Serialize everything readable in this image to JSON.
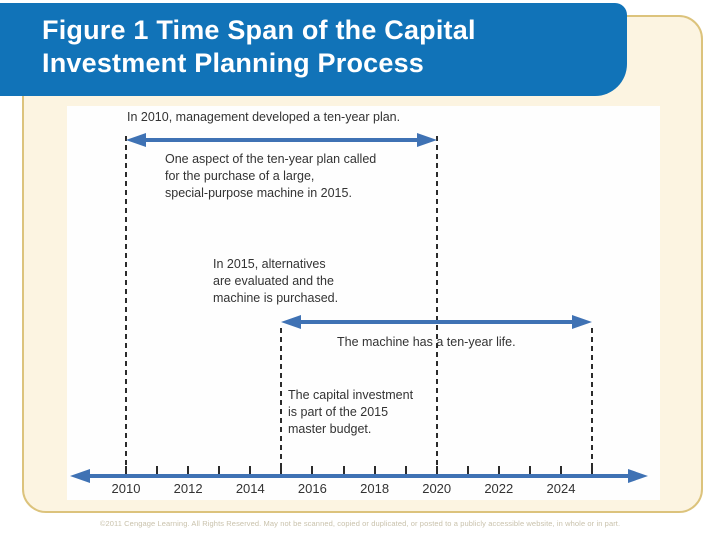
{
  "slide": {
    "title": "Figure 1 Time Span of the Capital Investment Planning Process",
    "copyright": "©2011 Cengage Learning. All Rights Reserved. May not be scanned, copied or duplicated, or posted to a publicly accessible website, in whole or in part."
  },
  "colors": {
    "header_blue": "#1173b8",
    "arrow_blue": "#3f72b4",
    "frame_cream": "#fcf4e1",
    "frame_border_tan": "#dcc37c",
    "text_ink": "#333333",
    "copyright_gray": "#c9c2ac"
  },
  "diagram": {
    "notes": {
      "plan": "In 2010, management developed a ten-year plan.",
      "aspect": "One aspect of the ten-year plan called\nfor the purchase of a large,\nspecial-purpose machine in 2015.",
      "evaluate": "In 2015, alternatives\nare evaluated and the\nmachine is purchased.",
      "life": "The machine has a ten-year life.",
      "budget": "The capital investment\nis part of the 2015\nmaster budget."
    },
    "timeline": {
      "start_year": 2010,
      "end_year": 2025,
      "labels": [
        "2010",
        "2012",
        "2014",
        "2016",
        "2018",
        "2020",
        "2022",
        "2024"
      ]
    },
    "spans": [
      {
        "from": 2010,
        "to": 2020,
        "meaning": "ten-year plan developed in 2010"
      },
      {
        "from": 2015,
        "to": 2025,
        "meaning": "ten-year life of machine purchased in 2015"
      }
    ]
  }
}
